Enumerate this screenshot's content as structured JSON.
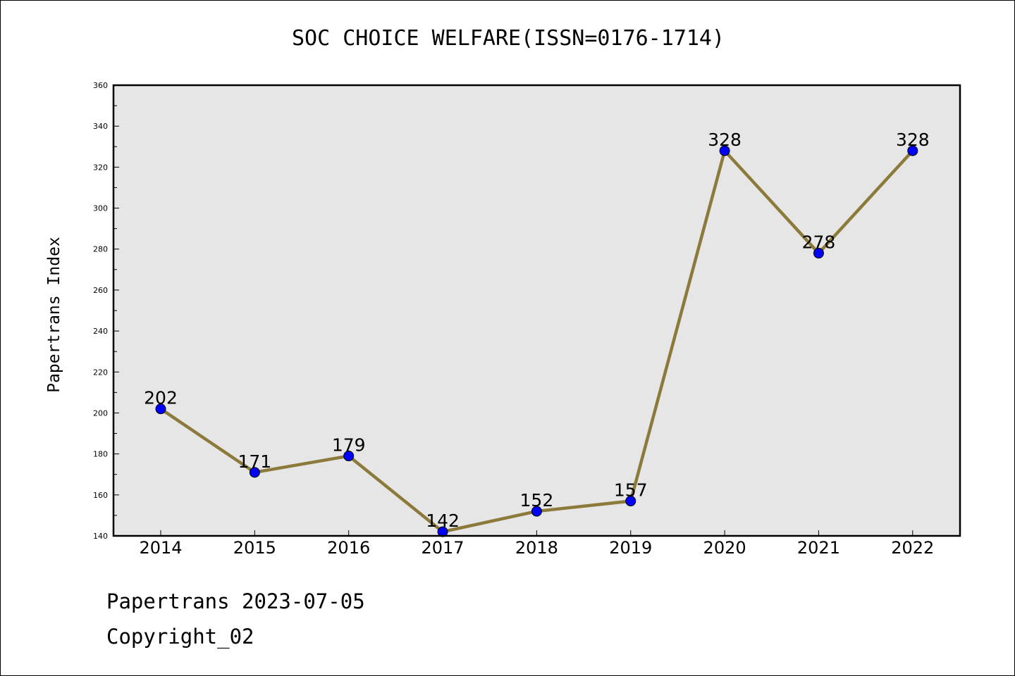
{
  "chart_data": {
    "type": "line",
    "title": "SOC CHOICE WELFARE(ISSN=0176-1714)",
    "xlabel": "",
    "ylabel": "Papertrans Index",
    "categories": [
      "2014",
      "2015",
      "2016",
      "2017",
      "2018",
      "2019",
      "2020",
      "2021",
      "2022"
    ],
    "series": [
      {
        "values": [
          202,
          171,
          179,
          142,
          152,
          157,
          328,
          278,
          328
        ]
      }
    ],
    "data_labels": [
      "202",
      "171",
      "179",
      "142",
      "152",
      "157",
      "328",
      "278",
      "328"
    ],
    "ylim": [
      140,
      360
    ],
    "y_ticks": [
      "140",
      "160",
      "180",
      "200",
      "220",
      "240",
      "260",
      "280",
      "300",
      "320",
      "340",
      "360"
    ],
    "grid": false,
    "legend": "none",
    "colors": {
      "line": "#8c7a3a",
      "marker": "#0000ff",
      "plot_background": "#e6e6e6",
      "page_background": "#ffffff"
    }
  },
  "footer": {
    "date_line": "Papertrans 2023-07-05",
    "copyright": "Copyright_02"
  }
}
